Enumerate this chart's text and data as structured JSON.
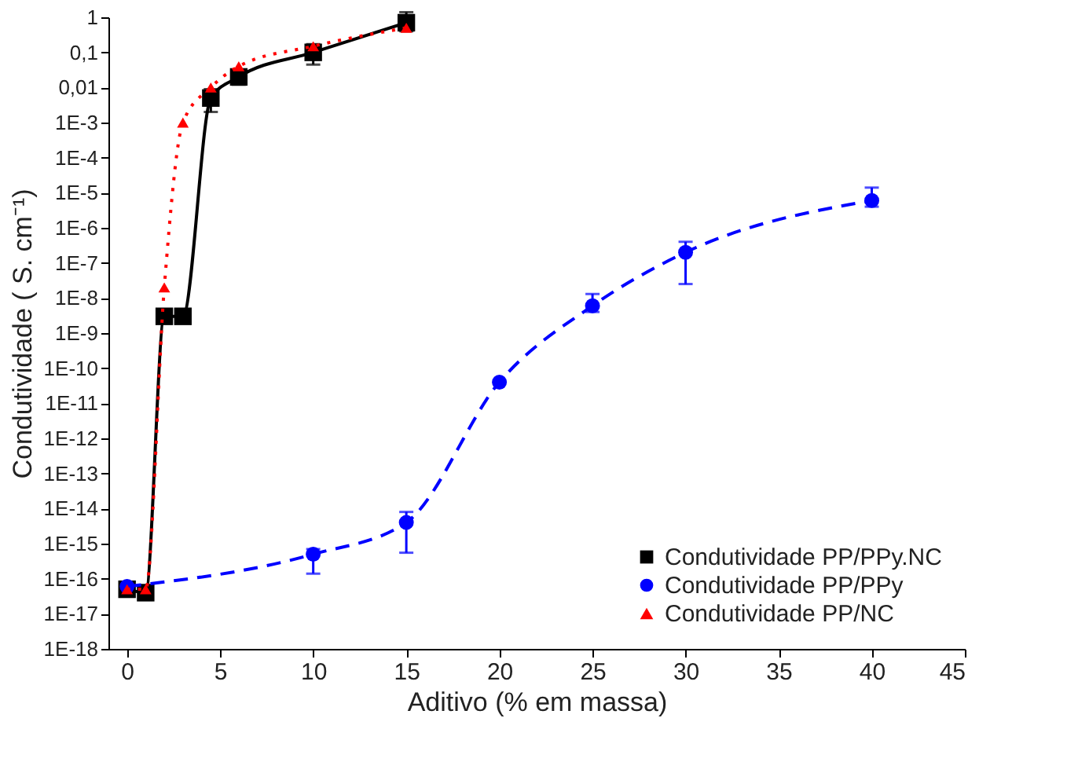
{
  "chart_data": {
    "type": "line",
    "xlabel": "Aditivo (% em massa)",
    "ylabel": "Condutividade ( S. cm⁻¹)",
    "log": "y",
    "xlim": [
      -1,
      45
    ],
    "xticks": [
      0,
      5,
      10,
      15,
      20,
      25,
      30,
      35,
      40,
      45
    ],
    "ylim": [
      1e-18,
      1
    ],
    "yticks": [
      {
        "value": 1,
        "label": "1"
      },
      {
        "value": 0.1,
        "label": "0,1"
      },
      {
        "value": 0.01,
        "label": "0,01"
      },
      {
        "value": 0.001,
        "label": "1E-3"
      },
      {
        "value": 0.0001,
        "label": "1E-4"
      },
      {
        "value": 1e-05,
        "label": "1E-5"
      },
      {
        "value": 1e-06,
        "label": "1E-6"
      },
      {
        "value": 1e-07,
        "label": "1E-7"
      },
      {
        "value": 1e-08,
        "label": "1E-8"
      },
      {
        "value": 1e-09,
        "label": "1E-9"
      },
      {
        "value": 1e-10,
        "label": "1E-10"
      },
      {
        "value": 1e-11,
        "label": "1E-11"
      },
      {
        "value": 1e-12,
        "label": "1E-12"
      },
      {
        "value": 1e-13,
        "label": "1E-13"
      },
      {
        "value": 1e-14,
        "label": "1E-14"
      },
      {
        "value": 1e-15,
        "label": "1E-15"
      },
      {
        "value": 1e-16,
        "label": "1E-16"
      },
      {
        "value": 1e-17,
        "label": "1E-17"
      },
      {
        "value": 1e-18,
        "label": "1E-18"
      }
    ],
    "grid": false,
    "legend": "bottom right",
    "series": [
      {
        "name": "Condutividade PP/PPy.NC",
        "color": "#000000",
        "marker": "square",
        "line_style": "solid",
        "x": [
          0,
          1,
          2,
          3,
          4.5,
          6,
          10,
          15
        ],
        "values": [
          5e-17,
          4e-17,
          3e-09,
          3e-09,
          0.005,
          0.02,
          0.1,
          0.7
        ],
        "errors": [
          null,
          [
            2.5e-17,
            5e-17
          ],
          null,
          [
            2e-09,
            4e-09
          ],
          [
            0.002,
            0.009
          ],
          [
            0.012,
            0.03
          ],
          [
            0.045,
            0.17
          ],
          [
            0.4,
            1.4
          ]
        ]
      },
      {
        "name": "Condutividade PP/PPy",
        "color": "#0000ff",
        "marker": "circle",
        "line_style": "dashed",
        "x": [
          0,
          10,
          15,
          20,
          25,
          30,
          40
        ],
        "values": [
          6e-17,
          5e-16,
          4e-15,
          4e-11,
          6e-09,
          2e-07,
          6e-06
        ],
        "errors": [
          null,
          [
            1.4e-16,
            7e-16
          ],
          [
            5.5e-16,
            8e-15
          ],
          null,
          [
            4e-09,
            1.3e-08
          ],
          [
            2.5e-08,
            4e-07
          ],
          [
            4e-06,
            1.4e-05
          ]
        ]
      },
      {
        "name": "Condutividade PP/NC",
        "color": "#ff0000",
        "marker": "triangle",
        "line_style": "dotted",
        "x": [
          0,
          1,
          2,
          3,
          4.5,
          6,
          10,
          15
        ],
        "values": [
          5e-17,
          5e-17,
          2e-08,
          0.001,
          0.01,
          0.04,
          0.15,
          0.5
        ],
        "errors": [
          null,
          null,
          null,
          null,
          null,
          null,
          null,
          null
        ]
      }
    ]
  }
}
